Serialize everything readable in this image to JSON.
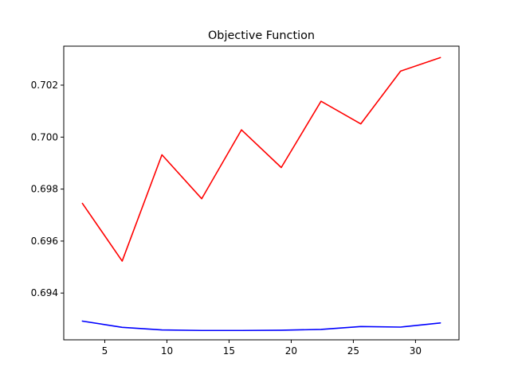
{
  "chart_data": {
    "type": "line",
    "title": "Objective Function",
    "xlabel": "",
    "ylabel": "",
    "xlim": [
      1.7,
      33.5
    ],
    "ylim": [
      0.6922,
      0.7035
    ],
    "xticks": [
      5,
      10,
      15,
      20,
      25,
      30
    ],
    "yticks": [
      0.694,
      0.696,
      0.698,
      0.7,
      0.702
    ],
    "xtick_labels": [
      "5",
      "10",
      "15",
      "20",
      "25",
      "30"
    ],
    "ytick_labels": [
      "0.694",
      "0.696",
      "0.698",
      "0.700",
      "0.702"
    ],
    "grid": false,
    "x": [
      3.2,
      6.4,
      9.6,
      12.8,
      16.0,
      19.2,
      22.4,
      25.6,
      28.8,
      32.0
    ],
    "series": [
      {
        "color": "#ff0000",
        "values": [
          0.69745,
          0.69523,
          0.69932,
          0.69763,
          0.70028,
          0.69883,
          0.70138,
          0.70051,
          0.70254,
          0.70306
        ]
      },
      {
        "color": "#0000ff",
        "values": [
          0.69292,
          0.69268,
          0.69258,
          0.69256,
          0.69256,
          0.69257,
          0.6926,
          0.69271,
          0.69269,
          0.69285
        ]
      }
    ]
  }
}
